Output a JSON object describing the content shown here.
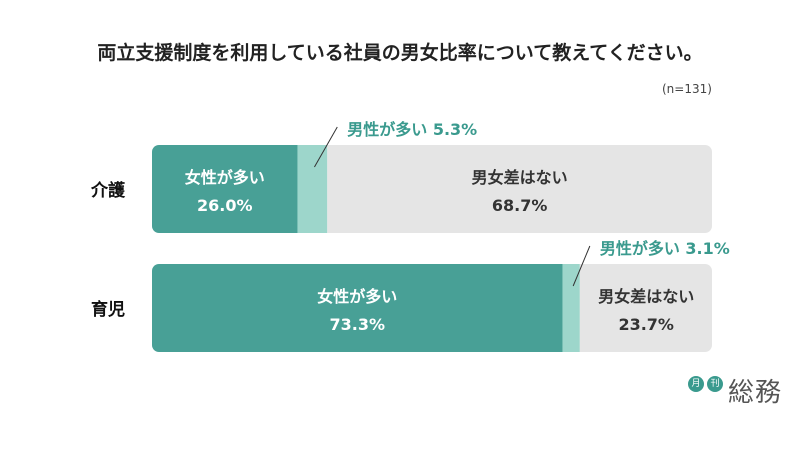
{
  "title": "両立支援制度を利用している社員の男女比率について教えてください。",
  "note": "(n=131)",
  "logo": {
    "badge1": "月",
    "badge2": "刊",
    "name": "総務"
  },
  "colors": {
    "female_more": "#48a096",
    "male_more": "#9dd6cb",
    "no_difference": "#e5e5e5",
    "callout_text": "#3a9a8e",
    "category_text": "#111111"
  },
  "chart_data": {
    "type": "bar",
    "orientation": "horizontal",
    "stacked": true,
    "categories": [
      "介護",
      "育児"
    ],
    "series": [
      {
        "name": "女性が多い",
        "values": [
          26.0,
          73.3
        ]
      },
      {
        "name": "男性が多い",
        "values": [
          5.3,
          3.1
        ]
      },
      {
        "name": "男女差はない",
        "values": [
          68.7,
          23.7
        ]
      }
    ],
    "unit": "%",
    "xlim": [
      0,
      100
    ],
    "grid": false,
    "legend": "none"
  }
}
